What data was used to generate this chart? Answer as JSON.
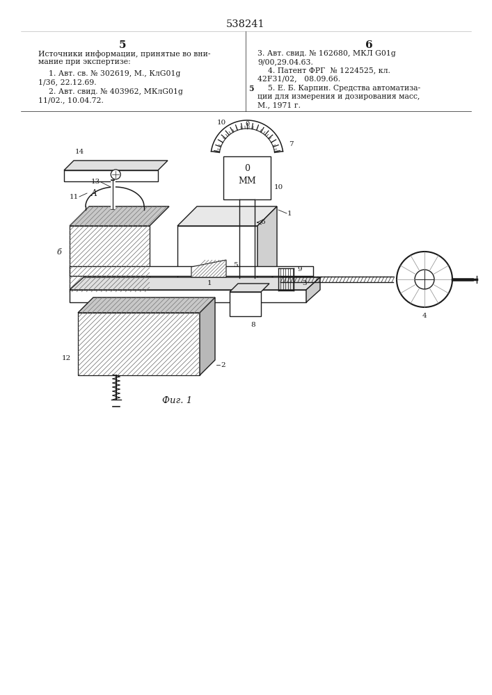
{
  "patent_number": "538241",
  "col_left_num": "5",
  "col_right_num": "6",
  "text_left_line1": "Источники информации, принятые во вни-",
  "text_left_line2": "мание при экспертизе:",
  "text_left_ref1_line1": "1. Авт. св. № 302619, М., КлG01g",
  "text_left_ref1_line2": "1/36, 22.12.69.",
  "text_left_ref2_line1": "2. Авт. свид. № 403962, МКлG01g",
  "text_left_ref2_line2": "11/02., 10.04.72.",
  "text_right_ref3_line1": "3. Авт. свид. № 162680, МКЛ G01g",
  "text_right_ref3_line2": "9/00,29.04.63.",
  "text_right_ref4_line1": "4. Патент ФРГ  № 1224525, кл.",
  "text_right_ref4_line2": "42F31/02,   08.09.66.",
  "margin_label": "5",
  "text_right_ref5_line1": "5. Е. Б. Карпин. Средства автоматиза-",
  "text_right_ref5_line2": "ции для измерения и дозирования масс,",
  "text_right_ref5_line3": "М., 1971 г.",
  "fig_caption": "Фиг. 1",
  "bg_color": "#ffffff",
  "text_color": "#1a1a1a",
  "line_color": "#1a1a1a"
}
